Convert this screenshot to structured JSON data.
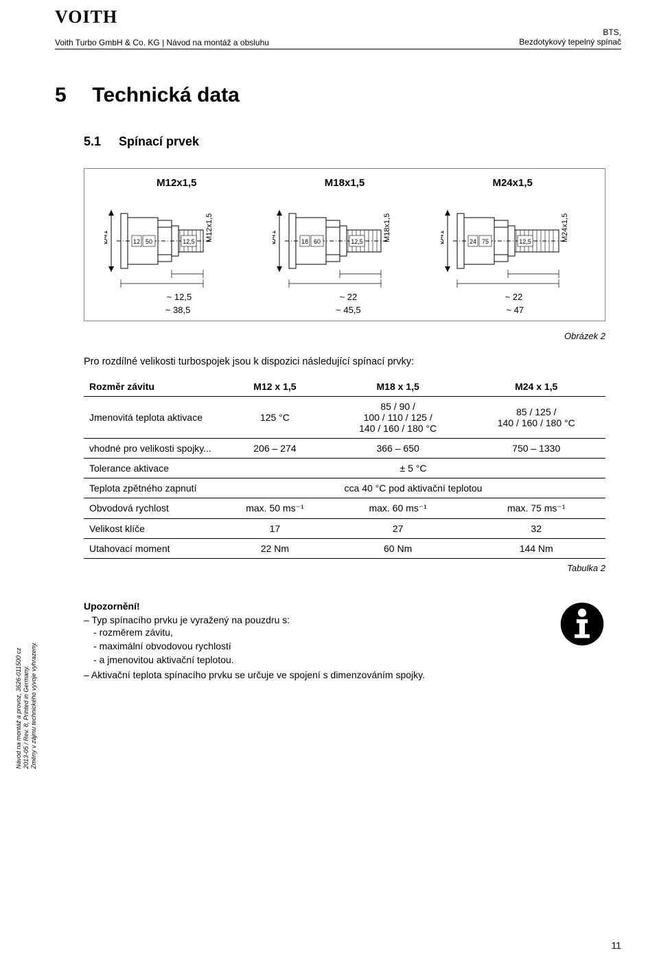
{
  "header": {
    "logo": "VOITH",
    "left_sub": "Voith Turbo GmbH & Co. KG  |  Návod na montáž a obsluhu",
    "right_top": "BTS,",
    "right_bottom": "Bezdotykový tepelný spínač"
  },
  "section": {
    "num": "5",
    "title": "Technická data"
  },
  "subsection": {
    "num": "5.1",
    "title": "Spínací prvek"
  },
  "figure": {
    "labels": [
      "M12x1,5",
      "M18x1,5",
      "M24x1,5"
    ],
    "dia_labels": [
      "Ø41",
      "Ø41",
      "Ø41"
    ],
    "thread_vlabels": [
      "M12x1,5",
      "M18x1,5",
      "M24x1,5"
    ],
    "inner_dims": [
      [
        "12",
        "50",
        "12,5"
      ],
      [
        "18",
        "60",
        "12,5"
      ],
      [
        "24",
        "75",
        "12,5"
      ]
    ],
    "dim_short": [
      "~ 12,5",
      "~ 22",
      "~ 22"
    ],
    "dim_long": [
      "~ 38,5",
      "~ 45,5",
      "~ 47"
    ],
    "caption": "Obrázek 2"
  },
  "intro": "Pro rozdílné velikosti turbospojek jsou k dispozici následující spínací prvky:",
  "table": {
    "rows": [
      {
        "label": "Rozměr závitu",
        "c": [
          "M12 x 1,5",
          "M18 x 1,5",
          "M24 x 1,5"
        ]
      },
      {
        "label": "Jmenovitá teplota aktivace",
        "c": [
          "125 °C",
          "85 / 90 /\n100 / 110 / 125 /\n140 / 160 / 180 °C",
          "85 / 125 /\n140 / 160 / 180 °C"
        ]
      },
      {
        "label": "vhodné pro velikosti spojky...",
        "c": [
          "206 – 274",
          "366 – 650",
          "750 – 1330"
        ]
      },
      {
        "label": "Tolerance aktivace",
        "span": "± 5 °C"
      },
      {
        "label": "Teplota zpětného zapnutí",
        "span": "cca 40 °C pod aktivační teplotou"
      },
      {
        "label": "Obvodová rychlost",
        "c": [
          "max. 50 ms⁻¹",
          "max. 60 ms⁻¹",
          "max. 75 ms⁻¹"
        ]
      },
      {
        "label": "Velikost klíče",
        "c": [
          "17",
          "27",
          "32"
        ]
      },
      {
        "label": "Utahovací moment",
        "c": [
          "22 Nm",
          "60 Nm",
          "144 Nm"
        ]
      }
    ],
    "caption": "Tabulka 2"
  },
  "note": {
    "title": "Upozornění!",
    "b1_lead": "Typ spínacího prvku je vyražený na pouzdru s:",
    "b1_items": [
      "rozměrem závitu,",
      "maximální obvodovou rychlostí",
      "a jmenovitou aktivační teplotou."
    ],
    "b2": "Aktivační teplota spínacího prvku se určuje ve spojení s dimenzováním spojky."
  },
  "side": {
    "l1": "Návod na montáž a provoz, 3626-011500 cz",
    "l2": "2013-05 / Rev. 8, Printed in Germany.",
    "l3": "Změny v zájmu technického vývoje vyhrazeny."
  },
  "page_number": "11"
}
